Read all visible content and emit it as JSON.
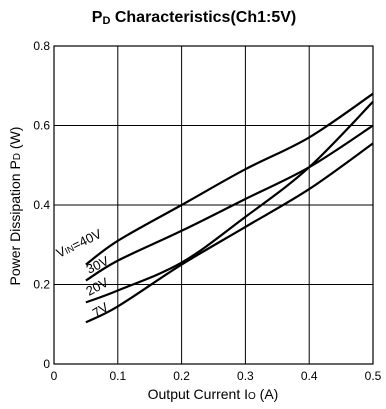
{
  "chart_data": {
    "type": "line",
    "title": "PD Characteristics(Ch1:5V)",
    "title_parts": {
      "main": "P",
      "sub": "D",
      "rest": " Characteristics(Ch1:5V)"
    },
    "xlabel": "Output Current Io (A)",
    "xlabel_parts": {
      "main": "Output Current I",
      "sub": "O",
      "rest": " (A)"
    },
    "ylabel": "Power Dissipation PD (W)",
    "ylabel_parts": {
      "main": "Power Dissipation P",
      "sub": "D",
      "rest": " (W)"
    },
    "xlim": [
      0,
      0.5
    ],
    "ylim": [
      0,
      0.8
    ],
    "xticks": [
      "0",
      "0.1",
      "0.2",
      "0.3",
      "0.4",
      "0.5"
    ],
    "yticks": [
      "0",
      "0.2",
      "0.4",
      "0.6",
      "0.8"
    ],
    "grid": true,
    "series": [
      {
        "name": "VIN=40V",
        "x": [
          0.05,
          0.1,
          0.2,
          0.3,
          0.4,
          0.5
        ],
        "y": [
          0.25,
          0.31,
          0.4,
          0.49,
          0.57,
          0.68
        ]
      },
      {
        "name": "30V",
        "x": [
          0.05,
          0.1,
          0.2,
          0.3,
          0.4,
          0.5
        ],
        "y": [
          0.21,
          0.26,
          0.335,
          0.415,
          0.495,
          0.6
        ]
      },
      {
        "name": "20V",
        "x": [
          0.05,
          0.1,
          0.2,
          0.3,
          0.4,
          0.5
        ],
        "y": [
          0.155,
          0.185,
          0.255,
          0.37,
          0.495,
          0.66
        ]
      },
      {
        "name": "7V",
        "x": [
          0.05,
          0.1,
          0.2,
          0.3,
          0.4,
          0.5
        ],
        "y": [
          0.105,
          0.145,
          0.25,
          0.345,
          0.44,
          0.555
        ]
      }
    ],
    "curve_labels": [
      {
        "text": "VIN=40V",
        "parts": {
          "main": "V",
          "sub": "IN",
          "rest": "=40V"
        }
      },
      {
        "text": "30V"
      },
      {
        "text": "20V"
      },
      {
        "text": "7V"
      }
    ]
  }
}
